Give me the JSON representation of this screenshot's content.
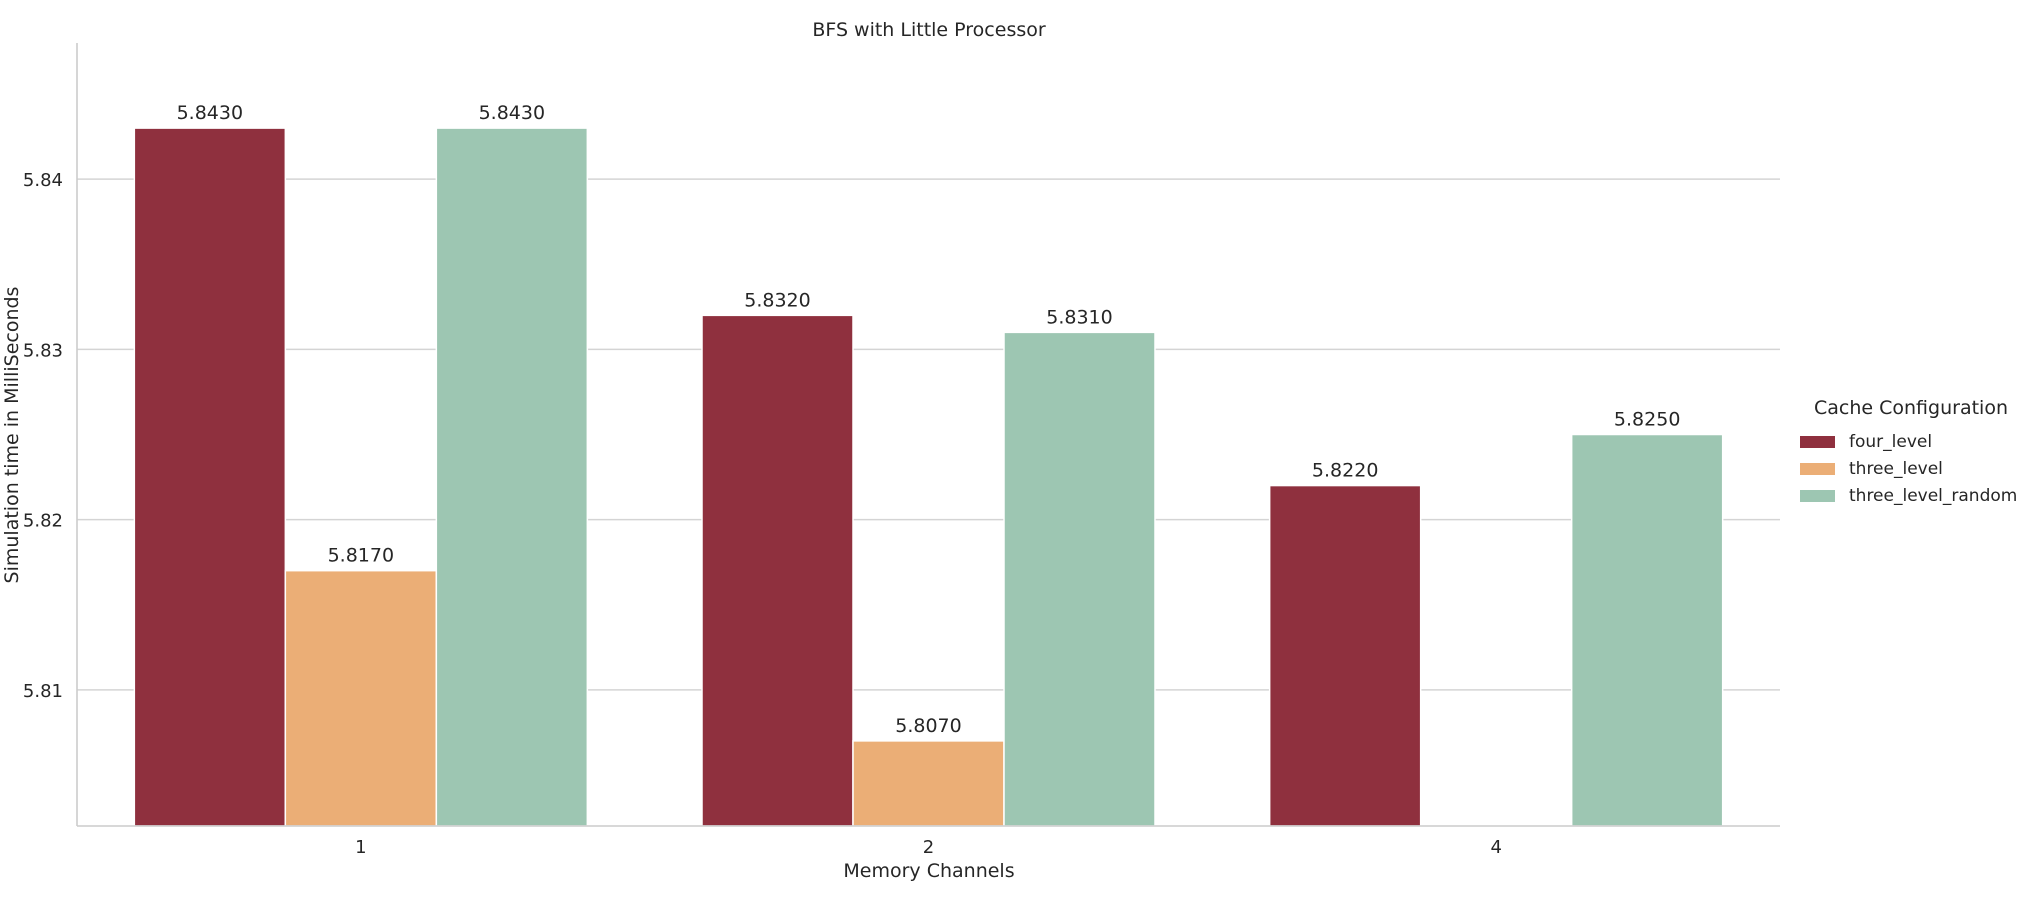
{
  "chart_data": {
    "type": "bar",
    "title": "BFS with Little Processor",
    "xlabel": "Memory Channels",
    "ylabel": "Simulation time in MilliSeconds",
    "categories": [
      "1",
      "2",
      "4"
    ],
    "series": [
      {
        "name": "four_level",
        "color": "#8f303e",
        "values": [
          5.843,
          5.832,
          5.822
        ],
        "labels": [
          "5.8430",
          "5.8320",
          "5.8220"
        ]
      },
      {
        "name": "three_level",
        "color": "#ebae76",
        "values": [
          5.817,
          5.807,
          null
        ],
        "labels": [
          "5.8170",
          "5.8070",
          ""
        ]
      },
      {
        "name": "three_level_random",
        "color": "#9dc6b2",
        "values": [
          5.843,
          5.831,
          5.825
        ],
        "labels": [
          "5.8430",
          "5.8310",
          "5.8250"
        ]
      }
    ],
    "ylim": [
      5.802,
      5.848
    ],
    "yticks": [
      5.81,
      5.82,
      5.83,
      5.84
    ],
    "ytick_labels": [
      "5.81",
      "5.82",
      "5.83",
      "5.84"
    ],
    "grid": "horizontal",
    "legend": {
      "title": "Cache Configuration",
      "placement": "right"
    }
  }
}
